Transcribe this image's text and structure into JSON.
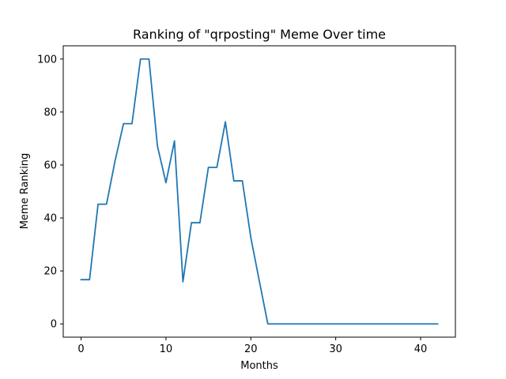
{
  "chart_data": {
    "type": "line",
    "title": "Ranking of \"qrposting\" Meme Over time",
    "xlabel": "Months",
    "ylabel": "Meme Ranking",
    "xlim": [
      -2.1,
      44.1
    ],
    "ylim": [
      -5,
      105
    ],
    "xticks": [
      0,
      10,
      20,
      30,
      40
    ],
    "yticks": [
      0,
      20,
      40,
      60,
      80,
      100
    ],
    "grid": false,
    "series": [
      {
        "color": "#1f77b4",
        "x": [
          0,
          1,
          2,
          3,
          4,
          5,
          6,
          7,
          8,
          9,
          10,
          11,
          12,
          13,
          14,
          15,
          16,
          17,
          18,
          19,
          20,
          21,
          22,
          23,
          24,
          25,
          26,
          27,
          28,
          29,
          30,
          31,
          32,
          33,
          34,
          35,
          36,
          37,
          38,
          39,
          40,
          41,
          42
        ],
        "y": [
          16.7,
          16.7,
          45.2,
          45.2,
          61.5,
          75.6,
          75.6,
          100,
          100,
          67.1,
          53.3,
          69.1,
          15.9,
          38.2,
          38.2,
          59.1,
          59.1,
          76.3,
          54,
          54,
          32.6,
          16.2,
          0,
          0,
          0,
          0,
          0,
          0,
          0,
          0,
          0,
          0,
          0,
          0,
          0,
          0,
          0,
          0,
          0,
          0,
          0,
          0,
          0
        ]
      }
    ]
  }
}
